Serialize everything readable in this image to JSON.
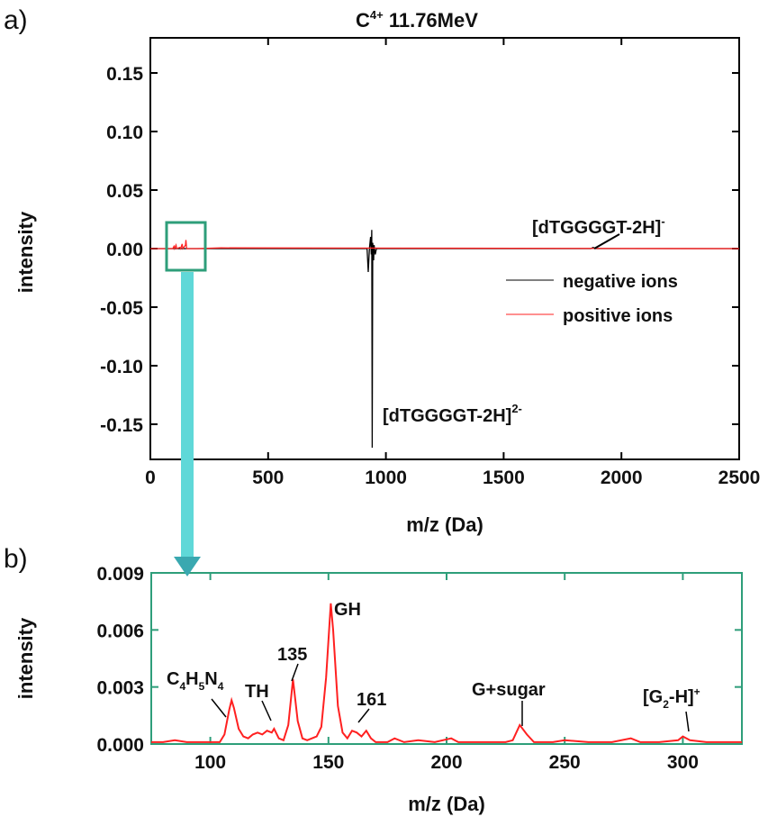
{
  "panel_labels": {
    "a": "a)",
    "b": "b)"
  },
  "colors": {
    "negative": "#000000",
    "positive": "#ff2020",
    "box": "#2e9e7a",
    "arrow": "#5fd8d8"
  },
  "chart_data": [
    {
      "type": "line",
      "title": "C4+ 11.76MeV",
      "title_main": "C",
      "title_sup": "4+",
      "title_rest": " 11.76MeV",
      "xlabel": "m/z (Da)",
      "ylabel": "intensity",
      "xlim": [
        0,
        2500
      ],
      "ylim": [
        -0.18,
        0.18
      ],
      "xticks": [
        "0",
        "500",
        "1000",
        "1500",
        "2000",
        "2500"
      ],
      "yticks": [
        "0.15",
        "0.10",
        "0.05",
        "0.00",
        "-0.05",
        "-0.10",
        "-0.15"
      ],
      "legend": {
        "position": "right",
        "entries": [
          "negative ions",
          "positive ions"
        ]
      },
      "series": [
        {
          "name": "negative ions",
          "x": [
            0,
            920,
            925,
            930,
            935,
            938,
            940,
            942,
            944,
            948,
            950,
            955,
            960,
            1870,
            1880,
            1890,
            2500
          ],
          "y": [
            0,
            0,
            -0.02,
            0,
            0.01,
            -0.005,
            0.016,
            -0.17,
            0.005,
            -0.01,
            0.003,
            -0.005,
            0,
            0,
            0.001,
            0,
            0
          ]
        },
        {
          "name": "positive ions",
          "x": [
            0,
            95,
            100,
            103,
            109,
            112,
            125,
            127,
            129,
            135,
            138,
            149,
            151,
            154,
            200,
            300,
            2500
          ],
          "y": [
            0,
            0,
            0.002,
            0,
            0.003,
            0,
            0.001,
            0.0008,
            0,
            0.004,
            0,
            0.003,
            0.0074,
            0,
            0,
            0.0006,
            0
          ]
        }
      ],
      "annotations": {
        "dimer_main": "[dTGGGGT-2H]",
        "dimer_sup": "2-",
        "mono_main": "[dTGGGGT-2H]",
        "mono_sup": "-"
      }
    },
    {
      "type": "line",
      "xlabel": "m/z (Da)",
      "ylabel": "intensity",
      "xlim": [
        75,
        325
      ],
      "ylim": [
        0,
        0.009
      ],
      "xticks": [
        "100",
        "150",
        "200",
        "250",
        "300"
      ],
      "yticks": [
        "0.009",
        "0.006",
        "0.003",
        "0.000"
      ],
      "series": [
        {
          "x": [
            75,
            80,
            85,
            90,
            95,
            100,
            104,
            106,
            108,
            109,
            110,
            112,
            114,
            116,
            118,
            120,
            122,
            124,
            126,
            127,
            129,
            131,
            133,
            135,
            137,
            139,
            141,
            143,
            145,
            147,
            149,
            151,
            152,
            154,
            156,
            158,
            160,
            162,
            164,
            166,
            168,
            170,
            175,
            178,
            182,
            188,
            195,
            202,
            205,
            215,
            225,
            228,
            231,
            234,
            237,
            245,
            250,
            260,
            270,
            278,
            282,
            290,
            298,
            300,
            303,
            310,
            320,
            325
          ],
          "y": [
            0.0001,
            0.0001,
            0.0002,
            0.0001,
            0.0001,
            0.0001,
            0.0001,
            0.0005,
            0.0018,
            0.0023,
            0.0019,
            0.0008,
            0.0004,
            0.0003,
            0.0005,
            0.0006,
            0.0005,
            0.0007,
            0.0006,
            0.0008,
            0.0003,
            0.0002,
            0.001,
            0.0034,
            0.0012,
            0.0003,
            0.0002,
            0.0003,
            0.0004,
            0.0009,
            0.0035,
            0.0074,
            0.006,
            0.002,
            0.0006,
            0.0003,
            0.0007,
            0.0006,
            0.0004,
            0.0007,
            0.0003,
            0.0001,
            0.0001,
            0.0003,
            0.0001,
            0.0002,
            0.0001,
            0.0003,
            0.0001,
            0.0001,
            0.0001,
            0.0002,
            0.001,
            0.0005,
            0.0001,
            0.0001,
            0.0002,
            0.0001,
            0.0001,
            0.0003,
            0.0001,
            0.0001,
            0.0002,
            0.0004,
            0.0002,
            0.0001,
            0.0001,
            0.0001
          ]
        }
      ],
      "annotations": {
        "c4h5n4": [
          "C",
          "4",
          "H",
          "5",
          "N",
          "4"
        ],
        "th": "TH",
        "p135": "135",
        "gh": "GH",
        "p161": "161",
        "gsugar": "G+sugar",
        "g2h": [
          "[G",
          "2",
          "-H]",
          "+"
        ]
      }
    }
  ]
}
